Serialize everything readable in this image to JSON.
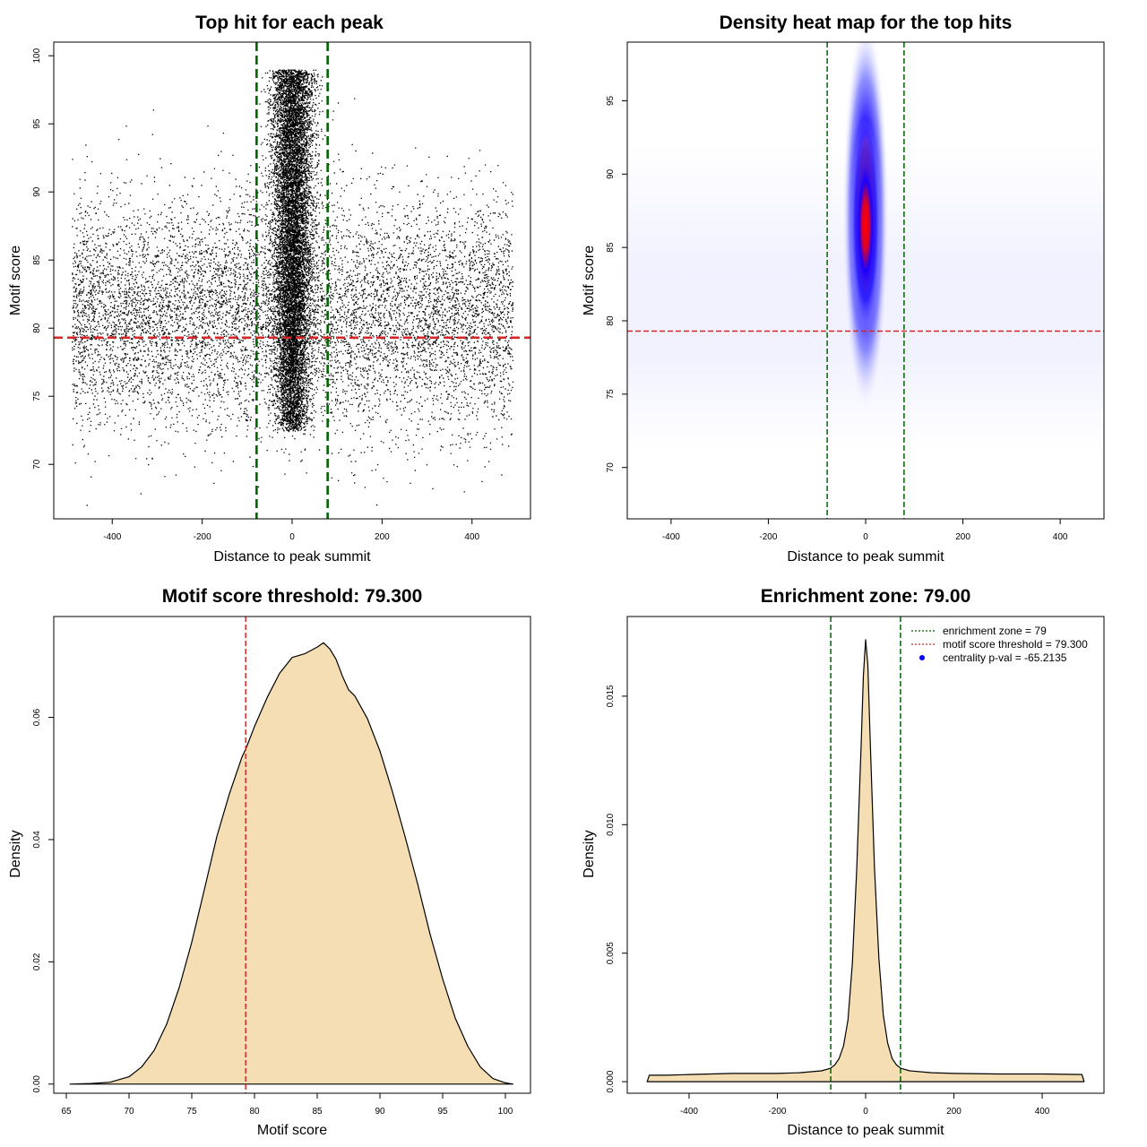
{
  "colors": {
    "threshold_line": "#d62728",
    "zone_line": "#006400",
    "density_fill": "#f5deb3",
    "points": "#000000",
    "heat_low": "#ffffff",
    "heat_mid": "#0000ff",
    "heat_high": "#ff0000",
    "legend_dot": "#0000ff"
  },
  "chart_data": [
    {
      "id": "scatter",
      "type": "scatter",
      "title": "Top hit for each peak",
      "xlabel": "Distance to peak summit",
      "ylabel": "Motif score",
      "xlim": [
        -530,
        530
      ],
      "ylim": [
        66,
        101
      ],
      "xticks": [
        -400,
        -200,
        0,
        200,
        400
      ],
      "yticks": [
        70,
        75,
        80,
        85,
        90,
        95,
        100
      ],
      "grid": false,
      "series": [
        {
          "description_points": "dense central column near distance 0, sparse uniform background",
          "center_x": 0,
          "center_sd_x": 12,
          "center_y_range": [
            72.5,
            99
          ],
          "background_x_range": [
            -490,
            490
          ],
          "background_y_range": [
            67,
            98
          ]
        }
      ],
      "hlines": [
        79.3
      ],
      "vlines": [
        -79,
        79
      ]
    },
    {
      "id": "heatmap",
      "type": "heatmap",
      "title": "Density heat map for the top hits",
      "xlabel": "Distance to peak summit",
      "ylabel": "Motif score",
      "xlim": [
        -490,
        490
      ],
      "ylim": [
        66.5,
        99
      ],
      "xticks": [
        -400,
        -200,
        0,
        200,
        400
      ],
      "yticks": [
        70,
        75,
        80,
        85,
        90,
        95
      ],
      "peak": {
        "x": 0,
        "y": 86.5
      },
      "hlines": [
        79.3
      ],
      "vlines": [
        -79,
        79
      ]
    },
    {
      "id": "score-density",
      "type": "area",
      "title": "Motif score threshold: 79.300",
      "xlabel": "Motif score",
      "ylabel": "Density",
      "xlim": [
        64,
        102
      ],
      "ylim": [
        -0.0015,
        0.0765
      ],
      "xticks": [
        65,
        70,
        75,
        80,
        85,
        90,
        95,
        100
      ],
      "yticks": [
        0.0,
        0.02,
        0.04,
        0.06
      ],
      "ytick_labels": [
        "0.00",
        "0.02",
        "0.04",
        "0.06"
      ],
      "x": [
        65.3,
        67,
        68.5,
        70,
        71,
        72,
        73,
        74,
        75,
        76,
        77,
        78,
        79,
        79.3,
        80,
        81,
        82,
        83,
        84,
        85,
        85.5,
        86,
        86.5,
        87,
        87.5,
        88,
        89,
        90,
        91,
        92,
        93,
        94,
        95,
        96,
        97,
        98,
        99,
        100,
        100.6
      ],
      "y": [
        0.0,
        0.0001,
        0.0003,
        0.0012,
        0.0028,
        0.0055,
        0.0098,
        0.0158,
        0.0232,
        0.0318,
        0.0405,
        0.0475,
        0.0535,
        0.0548,
        0.0585,
        0.0632,
        0.0672,
        0.0698,
        0.0704,
        0.0715,
        0.0722,
        0.0712,
        0.0695,
        0.0668,
        0.0645,
        0.0635,
        0.0598,
        0.0545,
        0.0478,
        0.0405,
        0.0328,
        0.0245,
        0.0172,
        0.0108,
        0.0062,
        0.0028,
        0.0009,
        0.0002,
        0.0
      ],
      "vlines": [
        79.3
      ]
    },
    {
      "id": "distance-density",
      "type": "area",
      "title": "Enrichment zone: 79.00",
      "xlabel": "Distance to peak summit",
      "ylabel": "Density",
      "xlim": [
        -540,
        540
      ],
      "ylim": [
        -0.00045,
        0.0181
      ],
      "xticks": [
        -400,
        -200,
        0,
        200,
        400
      ],
      "yticks": [
        0.0,
        0.005,
        0.01,
        0.015
      ],
      "ytick_labels": [
        "0.000",
        "0.005",
        "0.010",
        "0.015"
      ],
      "x": [
        -495,
        -490,
        -450,
        -400,
        -300,
        -200,
        -150,
        -100,
        -80,
        -70,
        -60,
        -50,
        -40,
        -30,
        -20,
        -10,
        -5,
        0,
        5,
        10,
        20,
        30,
        40,
        50,
        60,
        70,
        80,
        100,
        150,
        200,
        300,
        400,
        490,
        495
      ],
      "y": [
        0.0,
        0.00025,
        0.00025,
        0.00028,
        0.00032,
        0.00032,
        0.00035,
        0.00042,
        0.00052,
        0.00065,
        0.0009,
        0.0014,
        0.0024,
        0.0046,
        0.0083,
        0.0132,
        0.0158,
        0.0172,
        0.0162,
        0.0135,
        0.0083,
        0.0048,
        0.0026,
        0.0015,
        0.0009,
        0.00065,
        0.00052,
        0.00042,
        0.00035,
        0.00032,
        0.0003,
        0.0003,
        0.00028,
        0.0
      ],
      "vlines": [
        -79,
        79
      ],
      "legend": {
        "placement": "top-right",
        "entries": [
          {
            "label": "enrichment zone = 79",
            "style": "dotted-line",
            "color": "#006400"
          },
          {
            "label": "motif score threshold = 79.300",
            "style": "dotted-line",
            "color": "#d62728"
          },
          {
            "label": "centrality p-val = -65.2135",
            "style": "dot",
            "color": "#0000ff"
          }
        ]
      }
    }
  ]
}
